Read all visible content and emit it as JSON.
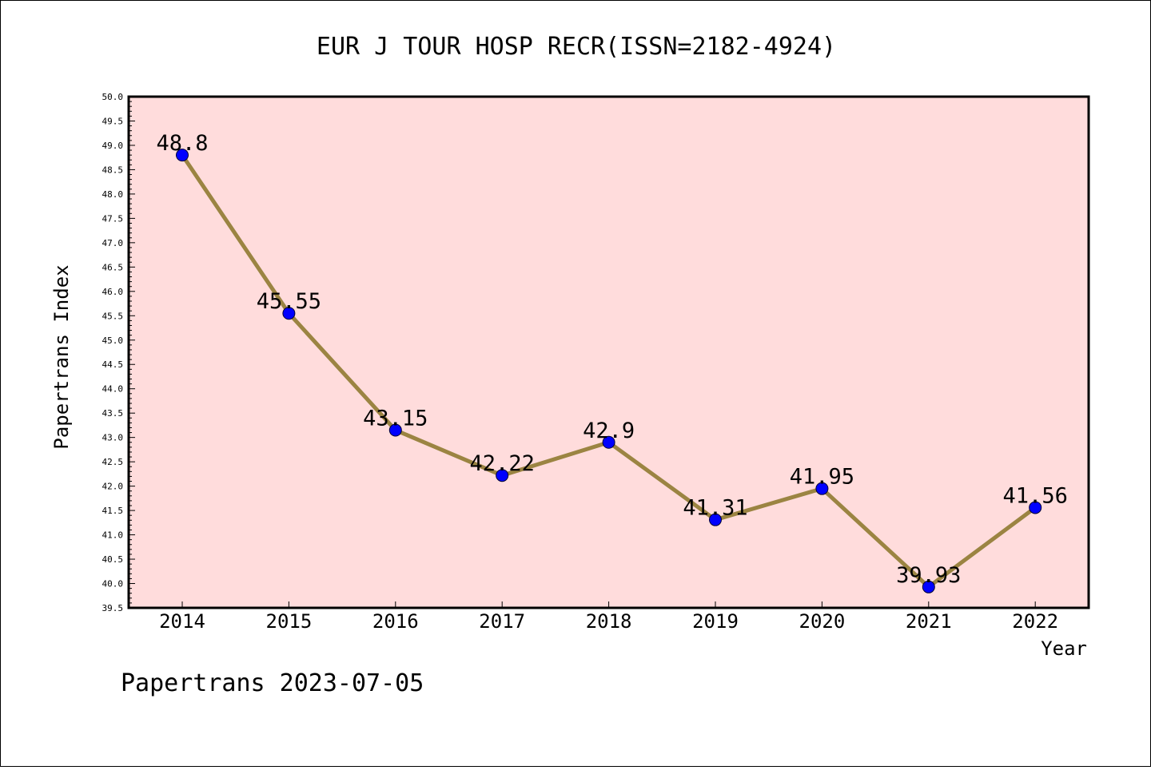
{
  "chart_data": {
    "type": "line",
    "title": "EUR J TOUR HOSP RECR(ISSN=2182-4924)",
    "xlabel": "Year",
    "ylabel": "Papertrans Index",
    "x": [
      "2014",
      "2015",
      "2016",
      "2017",
      "2018",
      "2019",
      "2020",
      "2021",
      "2022"
    ],
    "series": [
      {
        "values": [
          48.8,
          45.55,
          43.15,
          42.22,
          42.9,
          41.31,
          41.95,
          39.93,
          41.56
        ],
        "labels": [
          "48.8",
          "45.55",
          "43.15",
          "42.22",
          "42.9",
          "41.31",
          "41.95",
          "39.93",
          "41.56"
        ]
      }
    ],
    "ylim": [
      39.5,
      50.0
    ],
    "y_ticks": [
      "39.5",
      "40.0",
      "40.5",
      "41.0",
      "41.5",
      "42.0",
      "42.5",
      "43.0",
      "43.5",
      "44.0",
      "44.5",
      "45.0",
      "45.5",
      "46.0",
      "46.5",
      "47.0",
      "47.5",
      "48.0",
      "48.5",
      "49.0",
      "49.5",
      "50.0"
    ],
    "grid": false,
    "colors": {
      "plot_background": "#ffdcdc",
      "line": "#9b8442",
      "marker": "#0000ff"
    }
  },
  "footer": "Papertrans 2023-07-05"
}
